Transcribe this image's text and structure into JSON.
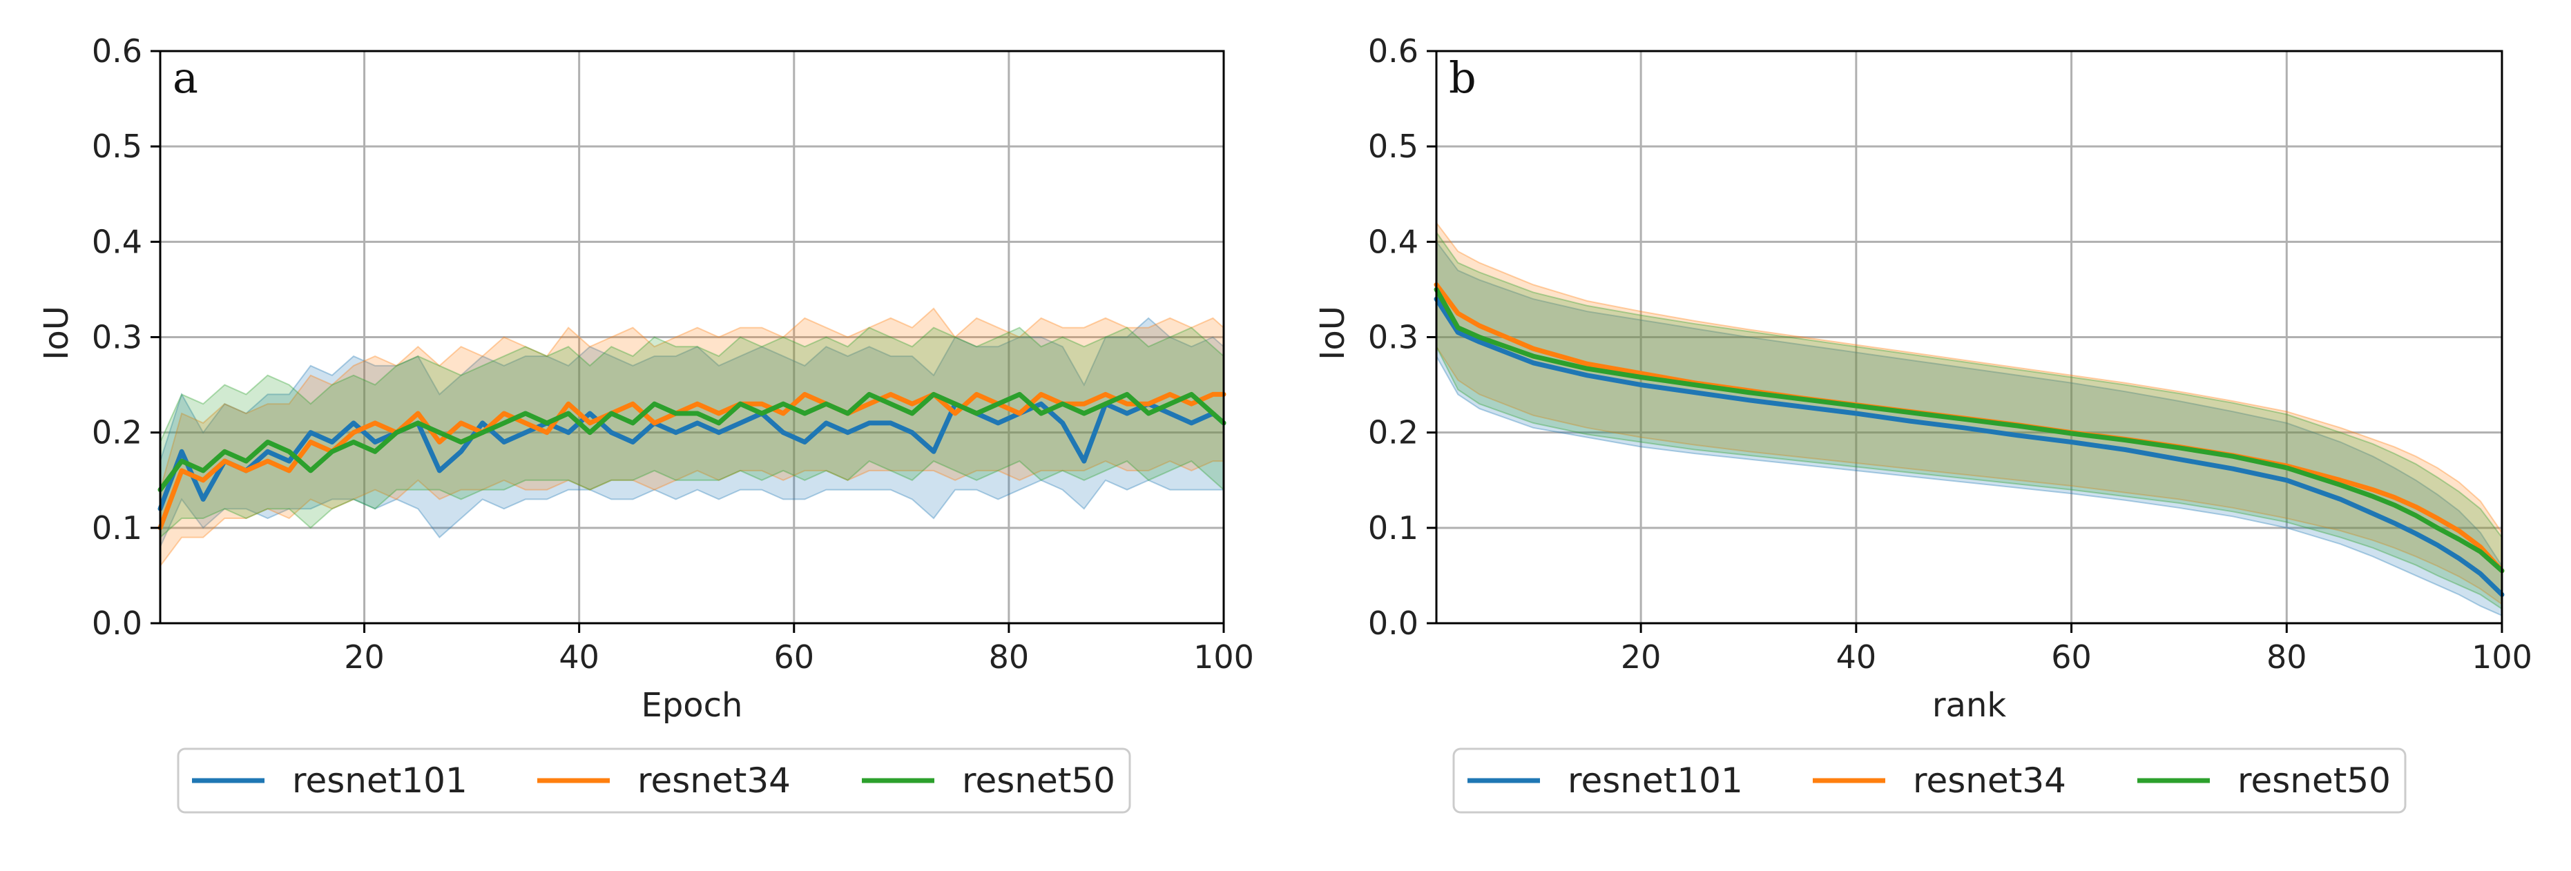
{
  "chart_data": [
    {
      "type": "line",
      "panel_label": "a",
      "xlabel": "Epoch",
      "ylabel": "IoU",
      "xlim": [
        1,
        100
      ],
      "ylim": [
        0,
        0.6
      ],
      "xticks": [
        20,
        40,
        60,
        80,
        100
      ],
      "yticks": [
        0.0,
        0.1,
        0.2,
        0.3,
        0.4,
        0.5,
        0.6
      ],
      "xtick_labels": [
        "20",
        "40",
        "60",
        "80",
        "100"
      ],
      "ytick_labels": [
        "0.0",
        "0.1",
        "0.2",
        "0.3",
        "0.4",
        "0.5",
        "0.6"
      ],
      "grid": true,
      "legend_position": "below",
      "x": [
        1,
        3,
        5,
        7,
        9,
        11,
        13,
        15,
        17,
        19,
        21,
        23,
        25,
        27,
        29,
        31,
        33,
        35,
        37,
        39,
        41,
        43,
        45,
        47,
        49,
        51,
        53,
        55,
        57,
        59,
        61,
        63,
        65,
        67,
        69,
        71,
        73,
        75,
        77,
        79,
        81,
        83,
        85,
        87,
        89,
        91,
        93,
        95,
        97,
        99,
        100
      ],
      "series": [
        {
          "name": "resnet101",
          "color": "#1f77b4",
          "values": [
            0.12,
            0.18,
            0.13,
            0.17,
            0.16,
            0.18,
            0.17,
            0.2,
            0.19,
            0.21,
            0.19,
            0.2,
            0.21,
            0.16,
            0.18,
            0.21,
            0.19,
            0.2,
            0.21,
            0.2,
            0.22,
            0.2,
            0.19,
            0.21,
            0.2,
            0.21,
            0.2,
            0.21,
            0.22,
            0.2,
            0.19,
            0.21,
            0.2,
            0.21,
            0.21,
            0.2,
            0.18,
            0.23,
            0.22,
            0.21,
            0.22,
            0.23,
            0.21,
            0.17,
            0.23,
            0.22,
            0.23,
            0.22,
            0.21,
            0.22,
            0.21
          ],
          "lower": [
            0.08,
            0.13,
            0.1,
            0.12,
            0.12,
            0.11,
            0.12,
            0.12,
            0.13,
            0.13,
            0.12,
            0.13,
            0.12,
            0.09,
            0.11,
            0.13,
            0.12,
            0.13,
            0.13,
            0.14,
            0.14,
            0.13,
            0.13,
            0.14,
            0.13,
            0.14,
            0.13,
            0.14,
            0.14,
            0.13,
            0.13,
            0.14,
            0.14,
            0.14,
            0.14,
            0.13,
            0.11,
            0.14,
            0.14,
            0.13,
            0.14,
            0.15,
            0.14,
            0.12,
            0.15,
            0.14,
            0.15,
            0.14,
            0.14,
            0.14,
            0.14
          ],
          "upper": [
            0.17,
            0.24,
            0.2,
            0.23,
            0.22,
            0.24,
            0.24,
            0.27,
            0.26,
            0.28,
            0.27,
            0.27,
            0.28,
            0.24,
            0.26,
            0.28,
            0.27,
            0.28,
            0.28,
            0.27,
            0.29,
            0.28,
            0.27,
            0.28,
            0.28,
            0.29,
            0.27,
            0.28,
            0.29,
            0.28,
            0.27,
            0.29,
            0.28,
            0.29,
            0.28,
            0.28,
            0.26,
            0.3,
            0.29,
            0.29,
            0.3,
            0.3,
            0.29,
            0.25,
            0.3,
            0.3,
            0.32,
            0.3,
            0.29,
            0.3,
            0.29
          ]
        },
        {
          "name": "resnet34",
          "color": "#ff7f0e",
          "values": [
            0.1,
            0.16,
            0.15,
            0.17,
            0.16,
            0.17,
            0.16,
            0.19,
            0.18,
            0.2,
            0.21,
            0.2,
            0.22,
            0.19,
            0.21,
            0.2,
            0.22,
            0.21,
            0.2,
            0.23,
            0.21,
            0.22,
            0.23,
            0.21,
            0.22,
            0.23,
            0.22,
            0.23,
            0.23,
            0.22,
            0.24,
            0.23,
            0.22,
            0.23,
            0.24,
            0.23,
            0.24,
            0.22,
            0.24,
            0.23,
            0.22,
            0.24,
            0.23,
            0.23,
            0.24,
            0.23,
            0.23,
            0.24,
            0.23,
            0.24,
            0.24
          ],
          "lower": [
            0.06,
            0.09,
            0.09,
            0.11,
            0.11,
            0.12,
            0.11,
            0.13,
            0.12,
            0.13,
            0.14,
            0.13,
            0.15,
            0.13,
            0.14,
            0.14,
            0.15,
            0.14,
            0.14,
            0.15,
            0.14,
            0.15,
            0.15,
            0.14,
            0.15,
            0.16,
            0.15,
            0.16,
            0.16,
            0.15,
            0.16,
            0.16,
            0.15,
            0.16,
            0.16,
            0.16,
            0.16,
            0.15,
            0.16,
            0.16,
            0.15,
            0.16,
            0.16,
            0.16,
            0.17,
            0.16,
            0.16,
            0.17,
            0.16,
            0.17,
            0.17
          ],
          "upper": [
            0.14,
            0.22,
            0.21,
            0.23,
            0.22,
            0.23,
            0.23,
            0.26,
            0.25,
            0.27,
            0.28,
            0.27,
            0.29,
            0.27,
            0.29,
            0.28,
            0.3,
            0.29,
            0.28,
            0.31,
            0.29,
            0.3,
            0.31,
            0.29,
            0.3,
            0.31,
            0.3,
            0.31,
            0.31,
            0.3,
            0.32,
            0.31,
            0.3,
            0.31,
            0.32,
            0.31,
            0.33,
            0.3,
            0.32,
            0.31,
            0.3,
            0.32,
            0.31,
            0.31,
            0.32,
            0.31,
            0.31,
            0.32,
            0.31,
            0.32,
            0.31
          ]
        },
        {
          "name": "resnet50",
          "color": "#2ca02c",
          "values": [
            0.14,
            0.17,
            0.16,
            0.18,
            0.17,
            0.19,
            0.18,
            0.16,
            0.18,
            0.19,
            0.18,
            0.2,
            0.21,
            0.2,
            0.19,
            0.2,
            0.21,
            0.22,
            0.21,
            0.22,
            0.2,
            0.22,
            0.21,
            0.23,
            0.22,
            0.22,
            0.21,
            0.23,
            0.22,
            0.23,
            0.22,
            0.23,
            0.22,
            0.24,
            0.23,
            0.22,
            0.24,
            0.23,
            0.22,
            0.23,
            0.24,
            0.22,
            0.23,
            0.22,
            0.23,
            0.24,
            0.22,
            0.23,
            0.24,
            0.22,
            0.21
          ],
          "lower": [
            0.09,
            0.11,
            0.11,
            0.12,
            0.11,
            0.12,
            0.12,
            0.1,
            0.12,
            0.13,
            0.12,
            0.14,
            0.14,
            0.14,
            0.13,
            0.14,
            0.14,
            0.15,
            0.15,
            0.15,
            0.14,
            0.15,
            0.15,
            0.16,
            0.15,
            0.15,
            0.15,
            0.16,
            0.15,
            0.16,
            0.15,
            0.16,
            0.15,
            0.17,
            0.16,
            0.15,
            0.17,
            0.16,
            0.15,
            0.16,
            0.17,
            0.15,
            0.16,
            0.15,
            0.16,
            0.17,
            0.15,
            0.16,
            0.17,
            0.15,
            0.14
          ],
          "upper": [
            0.19,
            0.24,
            0.23,
            0.25,
            0.24,
            0.26,
            0.25,
            0.23,
            0.25,
            0.26,
            0.25,
            0.27,
            0.28,
            0.27,
            0.26,
            0.27,
            0.28,
            0.29,
            0.28,
            0.29,
            0.27,
            0.29,
            0.28,
            0.3,
            0.29,
            0.29,
            0.28,
            0.3,
            0.29,
            0.3,
            0.29,
            0.3,
            0.29,
            0.31,
            0.3,
            0.29,
            0.31,
            0.3,
            0.29,
            0.3,
            0.31,
            0.29,
            0.3,
            0.29,
            0.3,
            0.31,
            0.29,
            0.3,
            0.31,
            0.29,
            0.28
          ]
        }
      ]
    },
    {
      "type": "line",
      "panel_label": "b",
      "xlabel": "rank",
      "ylabel": "IoU",
      "xlim": [
        1,
        100
      ],
      "ylim": [
        0,
        0.6
      ],
      "xticks": [
        20,
        40,
        60,
        80,
        100
      ],
      "yticks": [
        0.0,
        0.1,
        0.2,
        0.3,
        0.4,
        0.5,
        0.6
      ],
      "xtick_labels": [
        "20",
        "40",
        "60",
        "80",
        "100"
      ],
      "ytick_labels": [
        "0.0",
        "0.1",
        "0.2",
        "0.3",
        "0.4",
        "0.5",
        "0.6"
      ],
      "grid": true,
      "legend_position": "below",
      "x": [
        1,
        3,
        5,
        10,
        15,
        20,
        25,
        30,
        35,
        40,
        45,
        50,
        55,
        60,
        65,
        70,
        75,
        80,
        85,
        88,
        90,
        92,
        94,
        96,
        98,
        100
      ],
      "series": [
        {
          "name": "resnet101",
          "color": "#1f77b4",
          "values": [
            0.34,
            0.305,
            0.295,
            0.273,
            0.26,
            0.25,
            0.242,
            0.234,
            0.227,
            0.22,
            0.212,
            0.205,
            0.197,
            0.19,
            0.182,
            0.172,
            0.162,
            0.15,
            0.13,
            0.115,
            0.105,
            0.094,
            0.082,
            0.068,
            0.052,
            0.03
          ],
          "lower": [
            0.28,
            0.24,
            0.225,
            0.205,
            0.195,
            0.185,
            0.178,
            0.172,
            0.166,
            0.16,
            0.154,
            0.148,
            0.142,
            0.136,
            0.129,
            0.121,
            0.112,
            0.1,
            0.083,
            0.07,
            0.06,
            0.05,
            0.04,
            0.03,
            0.018,
            0.008
          ],
          "upper": [
            0.4,
            0.37,
            0.36,
            0.34,
            0.327,
            0.318,
            0.309,
            0.3,
            0.292,
            0.284,
            0.276,
            0.268,
            0.26,
            0.252,
            0.243,
            0.233,
            0.222,
            0.21,
            0.19,
            0.175,
            0.163,
            0.15,
            0.135,
            0.118,
            0.095,
            0.06
          ]
        },
        {
          "name": "resnet34",
          "color": "#ff7f0e",
          "values": [
            0.355,
            0.325,
            0.312,
            0.288,
            0.272,
            0.262,
            0.252,
            0.244,
            0.236,
            0.229,
            0.222,
            0.215,
            0.208,
            0.2,
            0.193,
            0.185,
            0.176,
            0.165,
            0.15,
            0.14,
            0.132,
            0.122,
            0.11,
            0.097,
            0.08,
            0.055
          ],
          "lower": [
            0.29,
            0.255,
            0.24,
            0.218,
            0.205,
            0.195,
            0.187,
            0.18,
            0.174,
            0.168,
            0.162,
            0.156,
            0.15,
            0.144,
            0.137,
            0.13,
            0.121,
            0.11,
            0.097,
            0.087,
            0.079,
            0.07,
            0.06,
            0.049,
            0.036,
            0.02
          ],
          "upper": [
            0.42,
            0.39,
            0.378,
            0.355,
            0.338,
            0.327,
            0.317,
            0.308,
            0.3,
            0.292,
            0.284,
            0.276,
            0.268,
            0.26,
            0.252,
            0.243,
            0.233,
            0.222,
            0.205,
            0.193,
            0.185,
            0.175,
            0.163,
            0.148,
            0.128,
            0.095
          ]
        },
        {
          "name": "resnet50",
          "color": "#2ca02c",
          "values": [
            0.35,
            0.31,
            0.3,
            0.28,
            0.267,
            0.258,
            0.25,
            0.242,
            0.235,
            0.228,
            0.221,
            0.214,
            0.207,
            0.199,
            0.192,
            0.184,
            0.175,
            0.163,
            0.145,
            0.133,
            0.124,
            0.113,
            0.1,
            0.088,
            0.075,
            0.055
          ],
          "lower": [
            0.29,
            0.245,
            0.23,
            0.21,
            0.198,
            0.19,
            0.182,
            0.176,
            0.17,
            0.164,
            0.158,
            0.152,
            0.146,
            0.14,
            0.133,
            0.126,
            0.117,
            0.106,
            0.09,
            0.079,
            0.07,
            0.061,
            0.05,
            0.04,
            0.03,
            0.015
          ],
          "upper": [
            0.41,
            0.378,
            0.368,
            0.347,
            0.333,
            0.323,
            0.314,
            0.306,
            0.298,
            0.29,
            0.282,
            0.274,
            0.266,
            0.258,
            0.25,
            0.241,
            0.231,
            0.219,
            0.2,
            0.188,
            0.178,
            0.167,
            0.153,
            0.138,
            0.12,
            0.09
          ]
        }
      ]
    }
  ]
}
